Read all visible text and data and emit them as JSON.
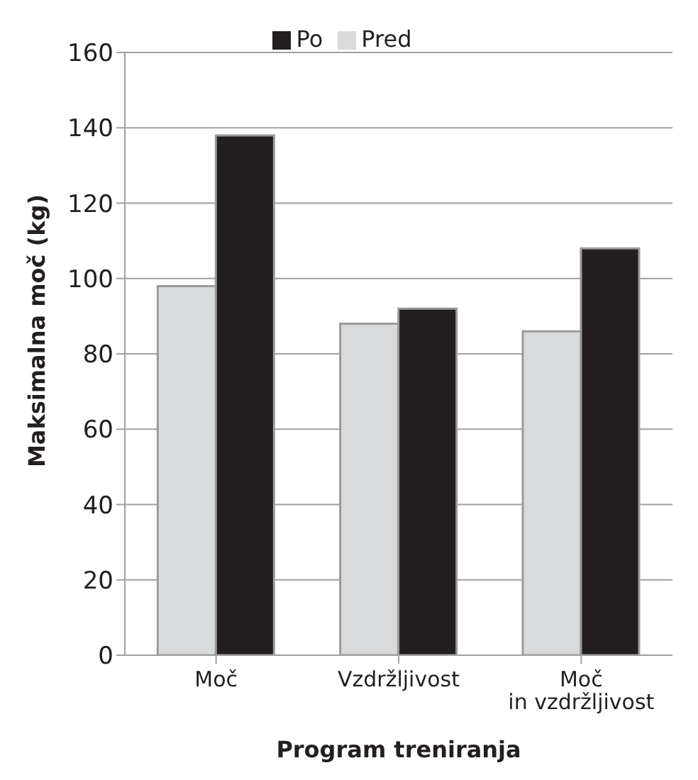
{
  "chart_data": {
    "type": "bar",
    "xlabel": "Program treniranja",
    "ylabel": "Maksimalna moč (kg)",
    "categories": [
      "Moč",
      "Vzdržljivost",
      "Moč\nin vzdržljivost"
    ],
    "series": [
      {
        "name": "Pred",
        "color": "#d9dadc",
        "values": [
          98,
          88,
          86
        ]
      },
      {
        "name": "Po",
        "color": "#231f20",
        "values": [
          138,
          92,
          108
        ]
      }
    ],
    "ylim": [
      0,
      160
    ],
    "yticks": [
      0,
      20,
      40,
      60,
      80,
      100,
      120,
      140,
      160
    ],
    "grid": "y",
    "legend": "top"
  }
}
